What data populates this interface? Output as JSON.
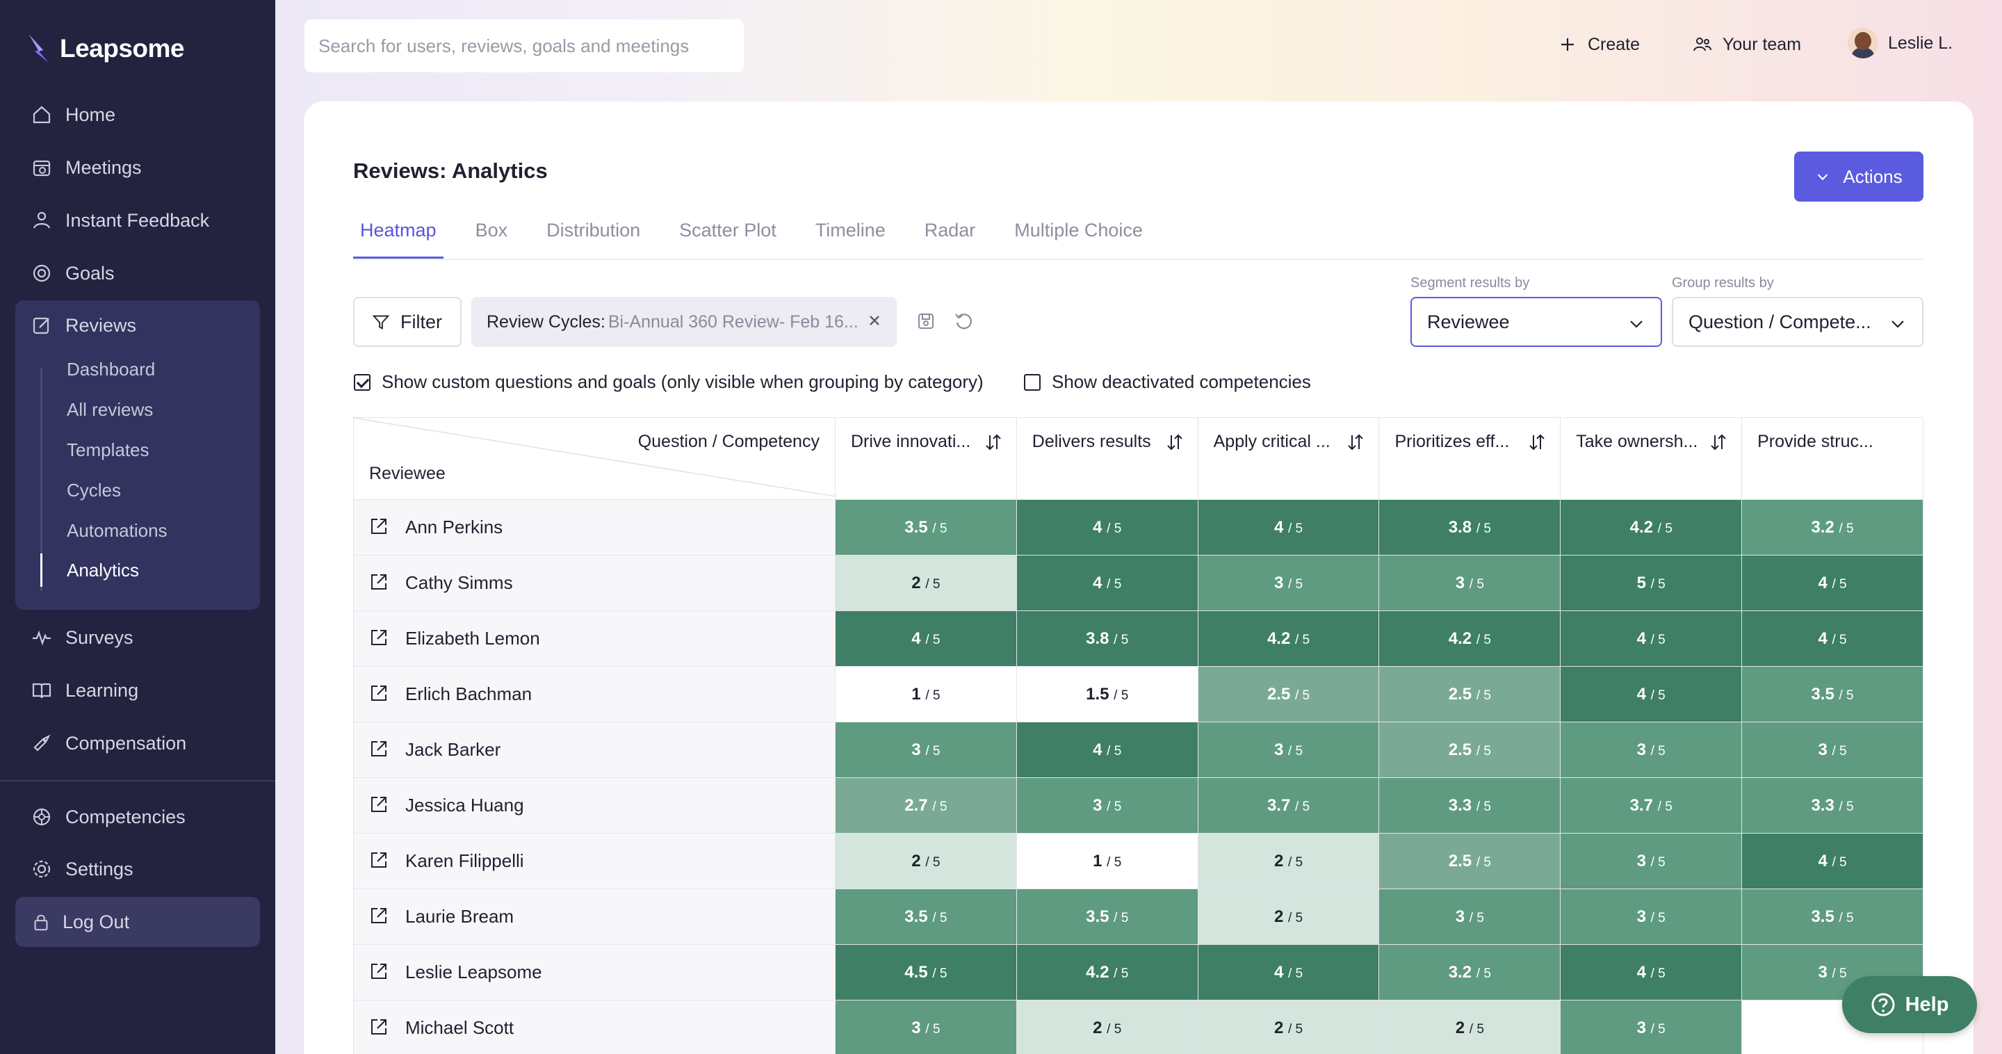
{
  "app": {
    "name": "Leapsome"
  },
  "sidebar": {
    "nav": [
      {
        "label": "Home",
        "icon": "home-icon"
      },
      {
        "label": "Meetings",
        "icon": "meetings-icon"
      },
      {
        "label": "Instant Feedback",
        "icon": "feedback-icon"
      },
      {
        "label": "Goals",
        "icon": "goals-icon"
      },
      {
        "label": "Reviews",
        "icon": "reviews-icon"
      },
      {
        "label": "Surveys",
        "icon": "surveys-icon"
      },
      {
        "label": "Learning",
        "icon": "learning-icon"
      },
      {
        "label": "Compensation",
        "icon": "compensation-icon"
      },
      {
        "label": "Competencies",
        "icon": "competencies-icon"
      },
      {
        "label": "Settings",
        "icon": "settings-icon"
      }
    ],
    "reviews_sub": [
      "Dashboard",
      "All reviews",
      "Templates",
      "Cycles",
      "Automations",
      "Analytics"
    ],
    "active_sub": "Analytics",
    "logout": "Log Out"
  },
  "topbar": {
    "search_placeholder": "Search for users, reviews, goals and meetings",
    "create": "Create",
    "your_team": "Your team",
    "user": "Leslie L."
  },
  "page": {
    "title": "Reviews: Analytics",
    "actions": "Actions",
    "tabs": [
      "Heatmap",
      "Box",
      "Distribution",
      "Scatter Plot",
      "Timeline",
      "Radar",
      "Multiple Choice"
    ],
    "active_tab": "Heatmap",
    "filter": "Filter",
    "chip_key": "Review Cycles:",
    "chip_value": "Bi-Annual 360 Review- Feb 16...",
    "segment_label": "Segment results by",
    "segment_value": "Reviewee",
    "group_label": "Group results by",
    "group_value": "Question / Compete...",
    "check_custom": "Show custom questions and goals (only visible when grouping by category)",
    "check_custom_checked": true,
    "check_deactivated": "Show deactivated competencies",
    "check_deactivated_checked": false
  },
  "table": {
    "corner_top": "Question / Competency",
    "corner_bottom": "Reviewee",
    "denominator": "/ 5",
    "columns": [
      "Drive innovati...",
      "Delivers results",
      "Apply critical ...",
      "Prioritizes eff...",
      "Take ownersh...",
      "Provide struc..."
    ],
    "rows": [
      {
        "name": "Ann Perkins",
        "values": [
          "3.5",
          "4",
          "4",
          "3.8",
          "4.2",
          "3.2"
        ]
      },
      {
        "name": "Cathy Simms",
        "values": [
          "2",
          "4",
          "3",
          "3",
          "5",
          "4"
        ]
      },
      {
        "name": "Elizabeth Lemon",
        "values": [
          "4",
          "3.8",
          "4.2",
          "4.2",
          "4",
          "4"
        ]
      },
      {
        "name": "Erlich Bachman",
        "values": [
          "1",
          "1.5",
          "2.5",
          "2.5",
          "4",
          "3.5"
        ]
      },
      {
        "name": "Jack Barker",
        "values": [
          "3",
          "4",
          "3",
          "2.5",
          "3",
          "3"
        ]
      },
      {
        "name": "Jessica Huang",
        "values": [
          "2.7",
          "3",
          "3.7",
          "3.3",
          "3.7",
          "3.3"
        ]
      },
      {
        "name": "Karen Filippelli",
        "values": [
          "2",
          "1",
          "2",
          "2.5",
          "3",
          "4"
        ]
      },
      {
        "name": "Laurie Bream",
        "values": [
          "3.5",
          "3.5",
          "2",
          "3",
          "3",
          "3.5"
        ]
      },
      {
        "name": "Leslie Leapsome",
        "values": [
          "4.5",
          "4.2",
          "4",
          "3.2",
          "4",
          "3"
        ]
      },
      {
        "name": "Michael Scott",
        "values": [
          "3",
          "2",
          "2",
          "2",
          "3",
          ""
        ]
      }
    ]
  },
  "help": "Help",
  "colors": {
    "accent": "#5b5bdf",
    "sidebar": "#23233f",
    "heat_dark": "#3e7f65",
    "heat_light": "#d3e5dd"
  }
}
